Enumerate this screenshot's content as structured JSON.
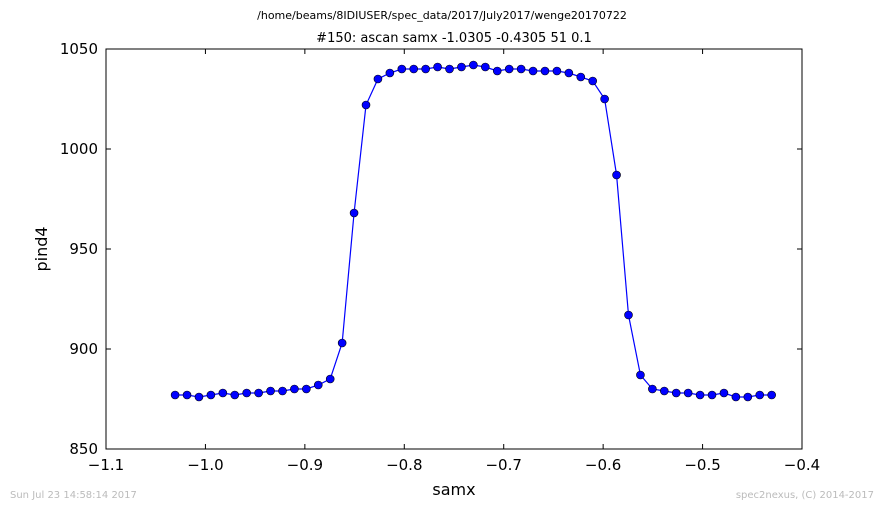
{
  "page": {
    "suptitle": "/home/beams/8IDIUSER/spec_data/2017/July2017/wenge20170722",
    "footer_left": "Sun Jul 23 14:58:14 2017",
    "footer_right": "spec2nexus, (C) 2014-2017"
  },
  "chart_data": {
    "type": "line",
    "title": "#150: ascan  samx -1.0305 -0.4305  51 0.1",
    "xlabel": "samx",
    "ylabel": "pind4",
    "xlim": [
      -1.1,
      -0.4
    ],
    "ylim": [
      850,
      1050
    ],
    "xticks": [
      -1.1,
      -1.0,
      -0.9,
      -0.8,
      -0.7,
      -0.6,
      -0.5,
      -0.4
    ],
    "xtick_labels": [
      "−1.1",
      "−1.0",
      "−0.9",
      "−0.8",
      "−0.7",
      "−0.6",
      "−0.5",
      "−0.4"
    ],
    "yticks": [
      850,
      900,
      950,
      1000,
      1050
    ],
    "ytick_labels": [
      "850",
      "900",
      "950",
      "1000",
      "1050"
    ],
    "grid": false,
    "colors": {
      "series": "#0000ff",
      "marker": "#0000ff"
    },
    "series": [
      {
        "x": [
          -1.0305,
          -1.0185,
          -1.0065,
          -0.9945,
          -0.9825,
          -0.9705,
          -0.9585,
          -0.9465,
          -0.9345,
          -0.9225,
          -0.9105,
          -0.8985,
          -0.8865,
          -0.8745,
          -0.8625,
          -0.8505,
          -0.8385,
          -0.8265,
          -0.8145,
          -0.8025,
          -0.7905,
          -0.7785,
          -0.7665,
          -0.7545,
          -0.7425,
          -0.7305,
          -0.7185,
          -0.7065,
          -0.6945,
          -0.6825,
          -0.6705,
          -0.6585,
          -0.6465,
          -0.6345,
          -0.6225,
          -0.6105,
          -0.5985,
          -0.5865,
          -0.5745,
          -0.5625,
          -0.5505,
          -0.5385,
          -0.5265,
          -0.5145,
          -0.5025,
          -0.4905,
          -0.4785,
          -0.4665,
          -0.4545,
          -0.4425,
          -0.4305
        ],
        "y": [
          877,
          877,
          876,
          877,
          878,
          877,
          878,
          878,
          879,
          879,
          880,
          880,
          882,
          885,
          903,
          968,
          1022,
          1035,
          1038,
          1040,
          1040,
          1040,
          1041,
          1040,
          1041,
          1042,
          1041,
          1039,
          1040,
          1040,
          1039,
          1039,
          1039,
          1038,
          1036,
          1034,
          1025,
          987,
          917,
          887,
          880,
          879,
          878,
          878,
          877,
          877,
          878,
          876,
          876,
          877,
          877
        ]
      }
    ]
  }
}
